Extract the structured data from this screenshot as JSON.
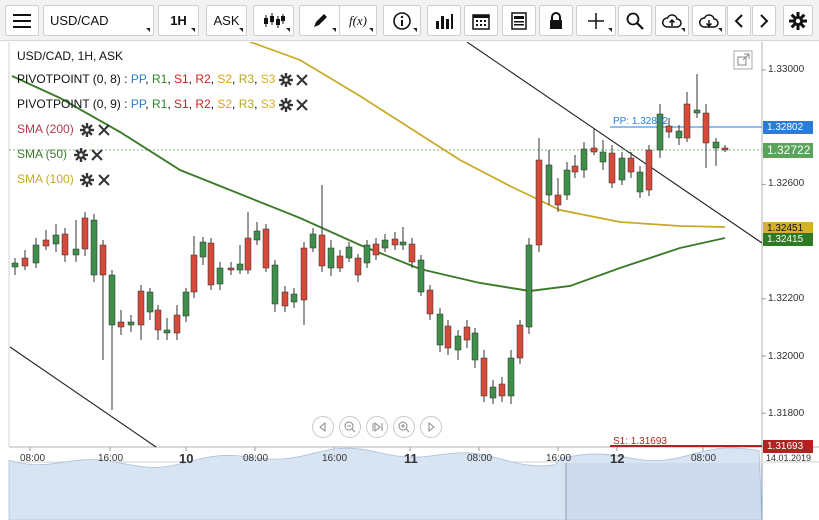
{
  "toolbar": {
    "symbol_value": "USD/CAD",
    "timeframe": "1H",
    "price_side": "ASK",
    "function_label": "f(x)"
  },
  "chart_title": "USD/CAD, 1H, ASK",
  "indicators": [
    {
      "name": "PIVOTPOINT (0, 8)",
      "sep": " : ",
      "levels": [
        "PP",
        "R1",
        "S1",
        "R2",
        "S2",
        "R3",
        "S3"
      ]
    },
    {
      "name": "PIVOTPOINT (0, 9)",
      "sep": " : ",
      "levels": [
        "PP",
        "R1",
        "S1",
        "R2",
        "S2",
        "R3",
        "S3"
      ]
    },
    {
      "name": "SMA (200)"
    },
    {
      "name": "SMA (50)"
    },
    {
      "name": "SMA (100)"
    }
  ],
  "colors": {
    "bull": "#3f8f4a",
    "bear": "#d64a3b",
    "sma200": "#b33a4a",
    "sma50": "#3a7a2a",
    "sma100": "#c9a825",
    "pp": "#2b7bd8",
    "r": "#cc2222",
    "s": "#2a8a2a",
    "r2": "#cc2222",
    "s2": "#e09020",
    "r3": "#b0a020",
    "s3": "#d6b020",
    "last_price": "#5aa35a",
    "s1_line": "#b22222"
  },
  "level_colors": [
    "#2b7bd8",
    "#2a8a2a",
    "#cc2222",
    "#cc2222",
    "#e0a020",
    "#b8a81a",
    "#d6b020"
  ],
  "y_axis_ticks": [
    "1.33000",
    "1.32600",
    "1.32200",
    "1.32000",
    "1.31800"
  ],
  "price_tags": {
    "pp": "1.32802",
    "last": "1.32722",
    "sma100": "1.32451",
    "sma50": "1.32415",
    "s1": "1.31693"
  },
  "chart_labels": {
    "pp": "PP: 1.32802",
    "s1": "S1: 1.31693"
  },
  "x_axis": [
    {
      "label": "08:00",
      "day": false
    },
    {
      "label": "16:00",
      "day": false
    },
    {
      "label": "10",
      "day": true
    },
    {
      "label": "08:00",
      "day": false
    },
    {
      "label": "16:00",
      "day": false
    },
    {
      "label": "11",
      "day": true
    },
    {
      "label": "08:00",
      "day": false
    },
    {
      "label": "16:00",
      "day": false
    },
    {
      "label": "12",
      "day": true
    },
    {
      "label": "08:00",
      "day": false
    },
    {
      "label": "14.01.2019",
      "day": false
    }
  ]
}
